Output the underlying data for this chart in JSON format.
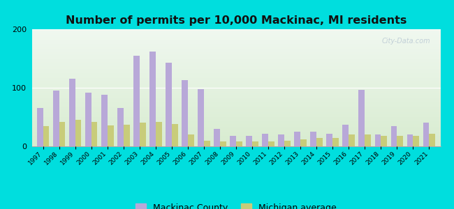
{
  "title": "Number of permits per 10,000 Mackinac, MI residents",
  "years": [
    1997,
    1998,
    1999,
    2000,
    2001,
    2002,
    2003,
    2004,
    2005,
    2006,
    2007,
    2008,
    2009,
    2010,
    2011,
    2012,
    2013,
    2014,
    2015,
    2016,
    2017,
    2018,
    2019,
    2020,
    2021
  ],
  "mackinac": [
    65,
    95,
    115,
    92,
    88,
    65,
    155,
    162,
    143,
    113,
    98,
    30,
    18,
    18,
    22,
    20,
    25,
    25,
    22,
    37,
    97,
    20,
    35,
    20,
    40
  ],
  "michigan": [
    35,
    42,
    45,
    42,
    36,
    37,
    40,
    42,
    38,
    20,
    10,
    8,
    8,
    8,
    8,
    10,
    12,
    14,
    14,
    20,
    20,
    18,
    18,
    18,
    22
  ],
  "mackinac_color": "#b8a8d8",
  "michigan_color": "#c8cc7a",
  "bg_outer": "#00dede",
  "ylim": [
    0,
    200
  ],
  "yticks": [
    0,
    100,
    200
  ],
  "bar_width": 0.38,
  "title_fontsize": 11.5,
  "legend_fontsize": 9
}
